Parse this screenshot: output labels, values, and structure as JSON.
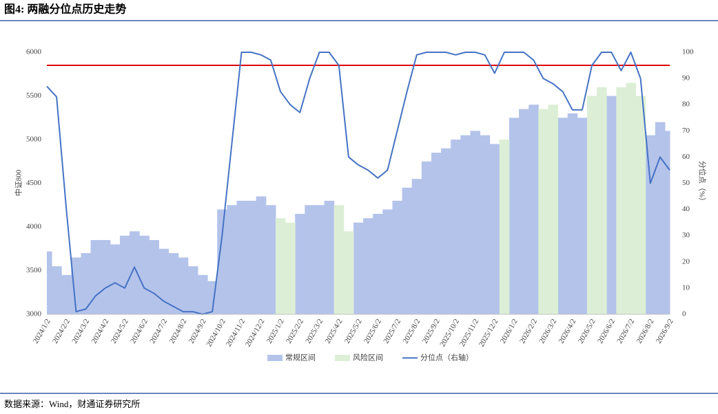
{
  "chart_data": {
    "type": "area_line",
    "title": "图4: 两融分位点历史走势",
    "source": "数据来源：Wind，财通证券研究所",
    "y_label": "中证800",
    "y2_label": "分位点（%）",
    "categories": [
      "2024/1/2",
      null,
      "2024/2/2",
      null,
      "2024/3/2",
      null,
      "2024/4/2",
      null,
      "2024/5/2",
      null,
      "2024/6/2",
      null,
      "2024/7/2",
      null,
      "2024/8/2",
      null,
      "2024/9/2",
      null,
      "2024/10/2",
      null,
      "2024/11/2",
      null,
      "2024/12/2",
      null,
      "2025/1/2",
      null,
      "2025/2/2",
      null,
      "2025/3/2",
      null,
      "2025/4/2",
      null,
      "2025/5/2",
      null,
      "2025/6/2",
      null,
      "2025/7/2",
      null,
      "2025/8/2",
      null,
      "2025/9/2",
      null,
      "2025/10/2",
      null,
      "2025/11/2",
      null,
      "2025/12/2",
      null,
      "2026/1/2",
      null,
      "2026/2/2",
      null,
      "2026/3/2",
      null,
      "2026/4/2",
      null,
      "2026/5/2",
      null,
      "2026/6/2",
      null,
      "2026/7/2",
      null,
      "2026/8/2",
      null,
      "2026/9/2"
    ],
    "series": [
      {
        "name": "常规区间",
        "kind": "area",
        "color": "#b4c3ea",
        "values": [
          3720,
          3550,
          3450,
          3650,
          3700,
          3850,
          3850,
          3800,
          3900,
          3950,
          3900,
          3850,
          3750,
          3700,
          3650,
          3550,
          3450,
          3380,
          4200,
          4250,
          4300,
          4300,
          4350,
          4250,
          null,
          null,
          4150,
          4250,
          4250,
          4300,
          null,
          null,
          4050,
          4100,
          4150,
          4200,
          4300,
          4450,
          4550,
          4750,
          4850,
          4900,
          5000,
          5050,
          5100,
          5050,
          4950,
          null,
          5250,
          5350,
          5400,
          null,
          null,
          5250,
          5300,
          5250,
          null,
          null,
          5500,
          null,
          null,
          null,
          5050,
          5200,
          5100
        ]
      },
      {
        "name": "风险区间",
        "kind": "area",
        "color": "#dcefd6",
        "values": [
          null,
          null,
          null,
          null,
          null,
          null,
          null,
          null,
          null,
          null,
          null,
          null,
          null,
          null,
          null,
          null,
          null,
          null,
          null,
          null,
          null,
          null,
          null,
          null,
          4100,
          4050,
          null,
          null,
          null,
          null,
          4250,
          3950,
          null,
          null,
          null,
          null,
          null,
          null,
          null,
          null,
          null,
          null,
          null,
          null,
          null,
          null,
          null,
          5000,
          null,
          null,
          null,
          5350,
          5400,
          null,
          null,
          null,
          5500,
          5600,
          null,
          5600,
          5650,
          5500,
          null,
          null,
          null
        ]
      },
      {
        "name": "分位点（右轴）",
        "kind": "line",
        "axis": "y2",
        "color": "#4472c4",
        "values": [
          87,
          83,
          40,
          1,
          2,
          7,
          10,
          12,
          10,
          18,
          10,
          8,
          5,
          3,
          1,
          1,
          0,
          1,
          30,
          65,
          100,
          100,
          99,
          97,
          85,
          80,
          77,
          90,
          100,
          100,
          95,
          60,
          57,
          55,
          52,
          55,
          70,
          85,
          99,
          100,
          100,
          100,
          99,
          100,
          100,
          99,
          92,
          100,
          100,
          100,
          97,
          90,
          88,
          85,
          78,
          78,
          95,
          100,
          100,
          93,
          100,
          90,
          50,
          60,
          55
        ]
      }
    ],
    "reference_line": {
      "value": 95,
      "axis": "y2",
      "color": "#e00000"
    },
    "ylim": [
      3000,
      6000
    ],
    "yticks": [
      3000,
      3500,
      4000,
      4500,
      5000,
      5500,
      6000
    ],
    "y2lim": [
      0,
      100
    ],
    "y2ticks": [
      0,
      10,
      20,
      30,
      40,
      50,
      60,
      70,
      80,
      90,
      100
    ]
  }
}
